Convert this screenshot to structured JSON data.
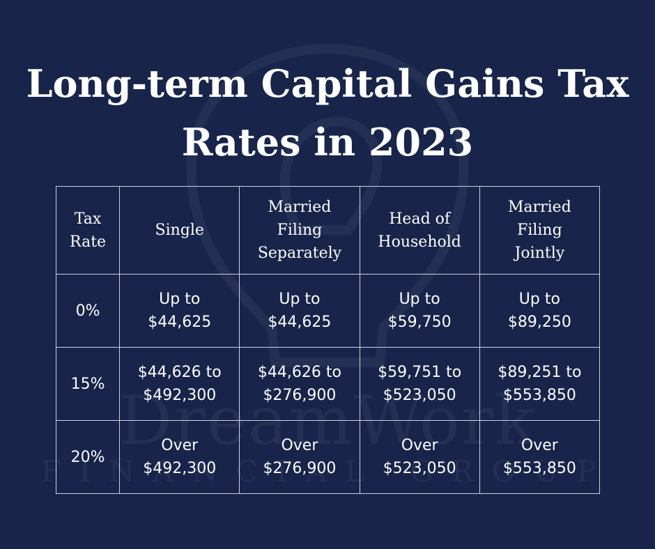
{
  "title": [
    "Long-term Capital Gains Tax",
    "Rates in 2023"
  ],
  "watermark": {
    "brand": "DreamWork",
    "sub": "FINANCIAL GROUP"
  },
  "table": {
    "headers": [
      [
        "Tax",
        "Rate"
      ],
      [
        "Single"
      ],
      [
        "Married",
        "Filing",
        "Separately"
      ],
      [
        "Head of",
        "Household"
      ],
      [
        "Married",
        "Filing",
        "Jointly"
      ]
    ],
    "rows": [
      {
        "rate": "0%",
        "cells": [
          [
            "Up to",
            "$44,625"
          ],
          [
            "Up to",
            "$44,625"
          ],
          [
            "Up to",
            "$59,750"
          ],
          [
            "Up to",
            "$89,250"
          ]
        ]
      },
      {
        "rate": "15%",
        "cells": [
          [
            "$44,626 to",
            "$492,300"
          ],
          [
            "$44,626 to",
            "$276,900"
          ],
          [
            "$59,751 to",
            "$523,050"
          ],
          [
            "$89,251 to",
            "$553,850"
          ]
        ]
      },
      {
        "rate": "20%",
        "cells": [
          [
            "Over",
            "$492,300"
          ],
          [
            "Over",
            "$276,900"
          ],
          [
            "Over",
            "$523,050"
          ],
          [
            "Over",
            "$553,850"
          ]
        ]
      }
    ]
  }
}
